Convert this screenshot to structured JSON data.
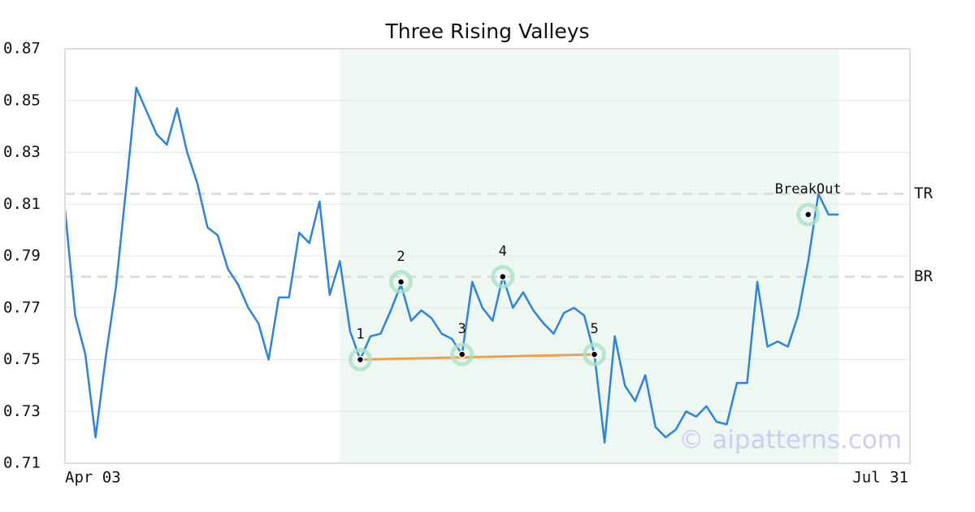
{
  "chart_data": {
    "type": "line",
    "title": "Three Rising Valleys",
    "x": [
      0,
      1,
      2,
      3,
      4,
      5,
      6,
      7,
      8,
      9,
      10,
      11,
      12,
      13,
      14,
      15,
      16,
      17,
      18,
      19,
      20,
      21,
      22,
      23,
      24,
      25,
      26,
      27,
      28,
      29,
      30,
      31,
      32,
      33,
      34,
      35,
      36,
      37,
      38,
      39,
      40,
      41,
      42,
      43,
      44,
      45,
      46,
      47,
      48,
      49,
      50,
      51,
      52,
      53,
      54,
      55,
      56,
      57,
      58,
      59,
      60,
      61,
      62,
      63,
      64,
      65,
      66,
      67,
      68,
      69,
      70,
      71,
      72,
      73,
      74,
      75,
      76
    ],
    "values": [
      0.808,
      0.767,
      0.752,
      0.72,
      0.751,
      0.778,
      0.816,
      0.855,
      0.846,
      0.837,
      0.833,
      0.847,
      0.83,
      0.818,
      0.801,
      0.798,
      0.785,
      0.779,
      0.77,
      0.764,
      0.75,
      0.774,
      0.774,
      0.799,
      0.795,
      0.811,
      0.775,
      0.788,
      0.761,
      0.75,
      0.759,
      0.76,
      0.769,
      0.779,
      0.765,
      0.769,
      0.766,
      0.76,
      0.758,
      0.752,
      0.78,
      0.77,
      0.765,
      0.782,
      0.77,
      0.776,
      0.769,
      0.764,
      0.76,
      0.768,
      0.77,
      0.767,
      0.752,
      0.718,
      0.759,
      0.74,
      0.734,
      0.744,
      0.724,
      0.72,
      0.723,
      0.73,
      0.728,
      0.732,
      0.726,
      0.725,
      0.741,
      0.741,
      0.78,
      0.755,
      0.757,
      0.755,
      0.767,
      0.788,
      0.814,
      0.806,
      0.806
    ],
    "color": "#2a84e0",
    "xlim": [
      0,
      83
    ],
    "ylim": [
      0.71,
      0.87
    ],
    "xticks": [
      {
        "value": 0,
        "label": "Apr 03"
      },
      {
        "value": 83,
        "label": "Jul 31"
      }
    ],
    "yticks": [
      0.71,
      0.73,
      0.75,
      0.77,
      0.79,
      0.81,
      0.83,
      0.85,
      0.87
    ],
    "grid": true,
    "highlight": {
      "x": [
        27,
        76
      ],
      "color": "#eef7f2"
    },
    "levels": [
      {
        "name": "TR",
        "value": 0.814
      },
      {
        "name": "BR",
        "value": 0.782
      }
    ],
    "trend_line": {
      "x": [
        29,
        52
      ],
      "y": [
        0.75,
        0.752
      ],
      "color": "#f0a04b"
    },
    "markers": [
      {
        "label": "1",
        "x": 29,
        "y": 0.75
      },
      {
        "label": "2",
        "x": 33,
        "y": 0.78
      },
      {
        "label": "3",
        "x": 39,
        "y": 0.752
      },
      {
        "label": "4",
        "x": 43,
        "y": 0.782
      },
      {
        "label": "5",
        "x": 52,
        "y": 0.752
      },
      {
        "label": "BreakOut",
        "x": 73,
        "y": 0.806
      }
    ],
    "watermark": "© aipatterns.com"
  }
}
